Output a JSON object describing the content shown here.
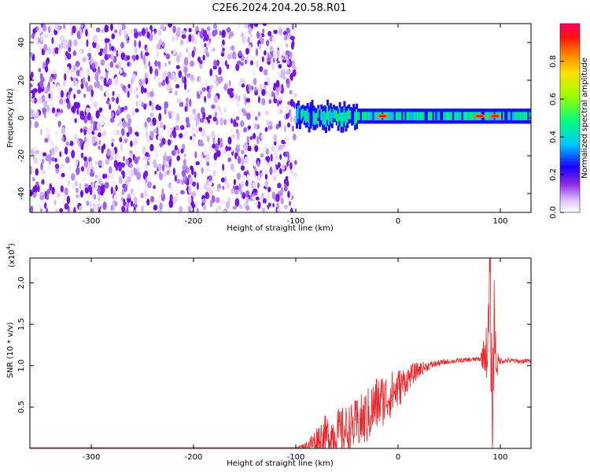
{
  "title": "C2E6.2024.204.20.58.R01",
  "chart_data": [
    {
      "type": "heatmap",
      "xlabel": "Height of straight line (km)",
      "ylabel": "Frequency (Hz)",
      "xlim": [
        -360,
        130
      ],
      "ylim": [
        -50,
        50
      ],
      "xticks": [
        -300,
        -200,
        -100,
        0,
        100
      ],
      "yticks": [
        -40,
        -20,
        0,
        20,
        40
      ],
      "colorbar": {
        "label": "Normalized spectral amplitude",
        "range": [
          0,
          1
        ],
        "ticks": [
          "0.0",
          "0.2",
          "0.4",
          "0.6",
          "0.8"
        ],
        "colormap": [
          "#ffffff",
          "#c9a6f7",
          "#7a1ce6",
          "#0000ff",
          "#00c8ff",
          "#00ff60",
          "#c8ff00",
          "#ffe000",
          "#ff8000",
          "#ff0000",
          "#ff0066"
        ]
      },
      "regions": [
        {
          "x_range": [
            -360,
            -100
          ],
          "freq_range": [
            -50,
            50
          ],
          "amplitude": 0.1,
          "description": "broadband noise"
        },
        {
          "x_range": [
            -100,
            130
          ],
          "freq_center": 1,
          "freq_width": 4,
          "amplitude": 0.6,
          "description": "narrow signal band"
        }
      ],
      "peaks": [
        {
          "x": -15,
          "freq": 1,
          "amplitude": 0.85
        },
        {
          "x": 80,
          "freq": 1,
          "amplitude": 0.85
        },
        {
          "x": 95,
          "freq": 1,
          "amplitude": 0.9
        }
      ]
    },
    {
      "type": "line",
      "xlabel": "Height of straight line (km)",
      "ylabel": "SNR (10 * v/v)",
      "y_multiplier": "(x10",
      "y_multiplier_exp": "4",
      "y_multiplier_close": ")",
      "xlim": [
        -360,
        130
      ],
      "ylim": [
        0,
        2.3
      ],
      "xticks": [
        -300,
        -200,
        -100,
        0,
        100
      ],
      "yticks": [
        0.5,
        1.0,
        1.5,
        2.0
      ],
      "ytick_labels": [
        "0.5",
        "1.0",
        "1.5",
        "2.0"
      ],
      "series": [
        {
          "color": "#e8272a",
          "x": [
            -360,
            -300,
            -200,
            -110,
            -100,
            -90,
            -75,
            -60,
            -45,
            -30,
            -20,
            -10,
            0,
            10,
            20,
            30,
            40,
            50,
            60,
            70,
            80,
            88,
            90,
            92,
            94,
            96,
            100,
            110,
            120,
            130
          ],
          "y": [
            0.01,
            0.01,
            0.01,
            0.01,
            0.01,
            0.03,
            0.12,
            0.18,
            0.25,
            0.38,
            0.55,
            0.62,
            0.72,
            0.85,
            0.95,
            1.0,
            1.03,
            1.05,
            1.06,
            1.07,
            1.08,
            1.2,
            2.2,
            0.15,
            1.6,
            1.0,
            1.06,
            1.06,
            1.05,
            1.06
          ],
          "noise": [
            0,
            0,
            0,
            0,
            0,
            0.05,
            0.25,
            0.3,
            0.3,
            0.35,
            0.35,
            0.3,
            0.25,
            0.15,
            0.1,
            0.05,
            0.04,
            0.03,
            0.03,
            0.03,
            0.03,
            0.4,
            0.8,
            0.8,
            0.6,
            0.2,
            0.04,
            0.03,
            0.03,
            0.03
          ]
        }
      ]
    }
  ]
}
